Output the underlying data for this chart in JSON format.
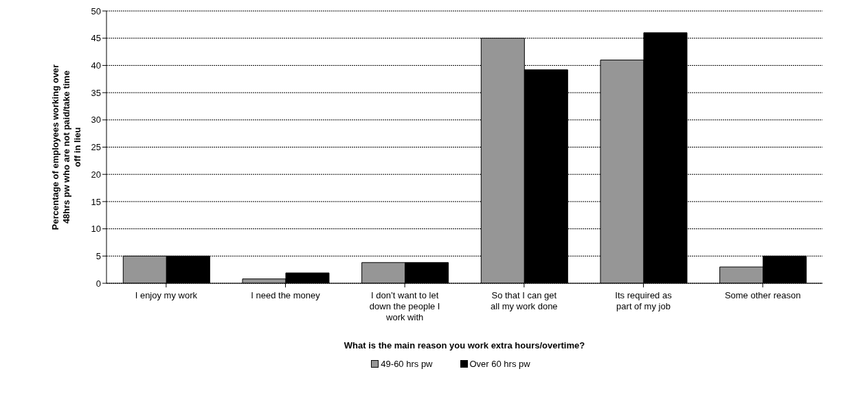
{
  "chart_data": {
    "type": "bar",
    "xlabel": "What is the main reason you work extra hours/overtime?",
    "ylabel": "Percentage of employees working over 48hrs pw who are not paid/take time off in lieu",
    "categories": [
      "I enjoy my work",
      "I need the money",
      "I don’t want to let down the people I work with",
      "So that I can get all my work done",
      "Its required as part of my job",
      "Some other reason"
    ],
    "series": [
      {
        "name": "49-60 hrs pw",
        "color": "#969696",
        "values": [
          5,
          0.8,
          3.8,
          45,
          41,
          3
        ]
      },
      {
        "name": "Over 60 hrs pw",
        "color": "#000000",
        "values": [
          5,
          1.9,
          3.8,
          39.2,
          46,
          5
        ]
      }
    ],
    "ylim": [
      0,
      50
    ],
    "yticks": [
      0,
      5,
      10,
      15,
      20,
      25,
      30,
      35,
      40,
      45,
      50
    ],
    "grid": "y",
    "legend": "bottom"
  }
}
